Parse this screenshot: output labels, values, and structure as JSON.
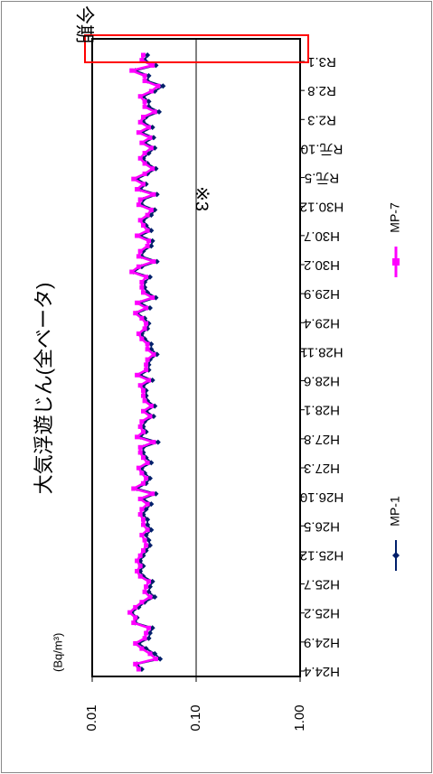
{
  "chart_data": {
    "type": "line",
    "title": "大気浮遊じん(全ベータ)",
    "ylabel": "(Bq/m³)",
    "yscale": "log",
    "ylim": [
      0.01,
      1.0
    ],
    "yticks": [
      "1.00",
      "0.10",
      "0.01"
    ],
    "xticks": [
      "H24.4",
      "H24.9",
      "H25.2",
      "H25.7",
      "H25.12",
      "H26.5",
      "H26.10",
      "H27.3",
      "H27.8",
      "H28.1",
      "H28.6",
      "H28.11",
      "H29.4",
      "H29.9",
      "H30.2",
      "H30.7",
      "H30.12",
      "R元.5",
      "R元.10",
      "R2.3",
      "R2.8",
      "R3.1"
    ],
    "annotation": "※3",
    "highlight_label": "今期",
    "reference_line": 0.1,
    "grid": false,
    "legend_position": "bottom",
    "series": [
      {
        "name": "MP-1",
        "color": "#001f6b",
        "marker": "diamond",
        "values": [
          0.03,
          0.027,
          0.045,
          0.04,
          0.033,
          0.028,
          0.035,
          0.036,
          0.038,
          0.026,
          0.027,
          0.024,
          0.028,
          0.032,
          0.04,
          0.035,
          0.036,
          0.038,
          0.031,
          0.029,
          0.031,
          0.029,
          0.031,
          0.033,
          0.036,
          0.035,
          0.033,
          0.037,
          0.034,
          0.034,
          0.031,
          0.033,
          0.037,
          0.031,
          0.041,
          0.027,
          0.033,
          0.036,
          0.032,
          0.03,
          0.037,
          0.033,
          0.031,
          0.031,
          0.043,
          0.029,
          0.033,
          0.031,
          0.032,
          0.039,
          0.033,
          0.04,
          0.034,
          0.033,
          0.033,
          0.031,
          0.038,
          0.029,
          0.035,
          0.035,
          0.036,
          0.042,
          0.037,
          0.037,
          0.032,
          0.03,
          0.034,
          0.035,
          0.032,
          0.027,
          0.036,
          0.029,
          0.041,
          0.034,
          0.032,
          0.032,
          0.036,
          0.025,
          0.03,
          0.042,
          0.03,
          0.031,
          0.037,
          0.038,
          0.029,
          0.037,
          0.033,
          0.031,
          0.037,
          0.04,
          0.03,
          0.031,
          0.042,
          0.029,
          0.033,
          0.027,
          0.034,
          0.041,
          0.034,
          0.031,
          0.035,
          0.04,
          0.032,
          0.039,
          0.03,
          0.038,
          0.031,
          0.033,
          0.044,
          0.035,
          0.035,
          0.031,
          0.04,
          0.048,
          0.034,
          0.035,
          0.026,
          0.041,
          0.032,
          0.034
        ]
      },
      {
        "name": "MP-7",
        "color": "#ff00ff",
        "marker": "square",
        "values": [
          0.028,
          0.026,
          0.041,
          0.036,
          0.03,
          0.026,
          0.032,
          0.033,
          0.035,
          0.025,
          0.026,
          0.023,
          0.026,
          0.03,
          0.036,
          0.032,
          0.033,
          0.035,
          0.029,
          0.027,
          0.029,
          0.027,
          0.029,
          0.031,
          0.033,
          0.032,
          0.03,
          0.034,
          0.031,
          0.031,
          0.029,
          0.03,
          0.034,
          0.029,
          0.038,
          0.025,
          0.031,
          0.033,
          0.03,
          0.028,
          0.034,
          0.031,
          0.029,
          0.029,
          0.039,
          0.027,
          0.031,
          0.029,
          0.03,
          0.036,
          0.031,
          0.037,
          0.032,
          0.031,
          0.031,
          0.029,
          0.035,
          0.027,
          0.033,
          0.033,
          0.034,
          0.039,
          0.034,
          0.034,
          0.03,
          0.028,
          0.032,
          0.033,
          0.03,
          0.026,
          0.033,
          0.027,
          0.038,
          0.031,
          0.03,
          0.03,
          0.033,
          0.024,
          0.028,
          0.039,
          0.028,
          0.029,
          0.034,
          0.035,
          0.027,
          0.034,
          0.031,
          0.029,
          0.034,
          0.037,
          0.028,
          0.029,
          0.039,
          0.027,
          0.031,
          0.025,
          0.032,
          0.038,
          0.032,
          0.029,
          0.032,
          0.037,
          0.03,
          0.036,
          0.028,
          0.035,
          0.029,
          0.031,
          0.04,
          0.032,
          0.032,
          0.029,
          0.037,
          0.043,
          0.032,
          0.032,
          0.024,
          0.038,
          0.03,
          0.031
        ]
      }
    ]
  },
  "colors": {
    "frame_border": "#888888",
    "axis": "#000000",
    "reference_line": "#000000",
    "highlight_box": "#ff0000"
  }
}
